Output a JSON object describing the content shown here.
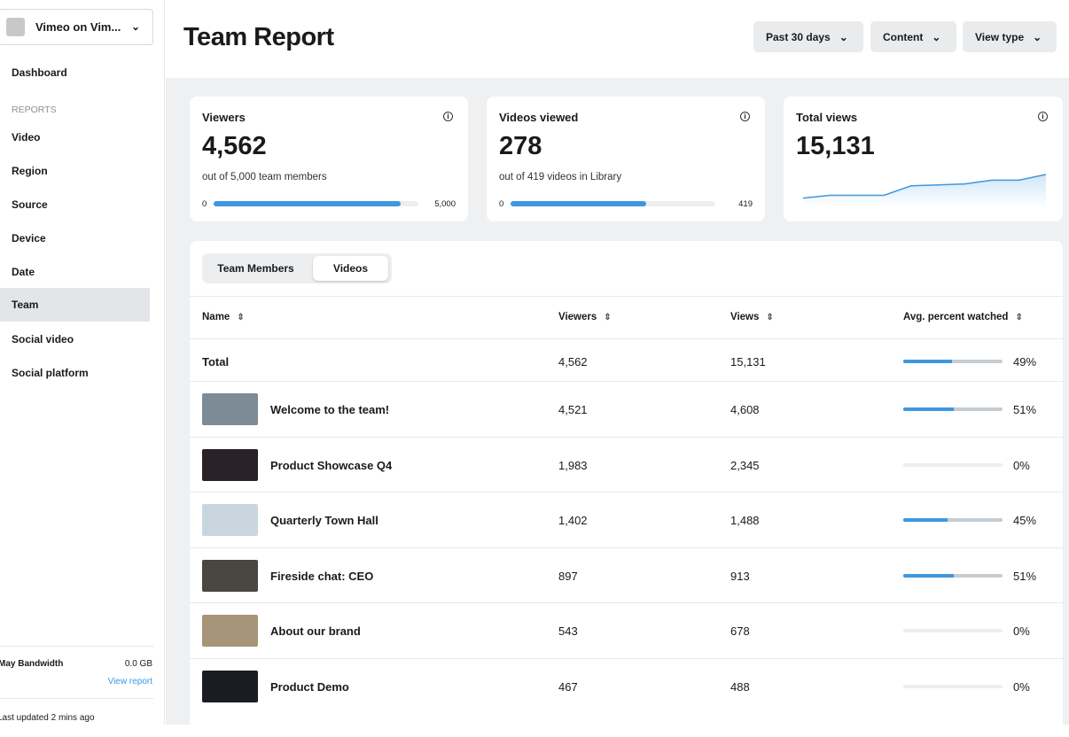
{
  "sidebar": {
    "workspace": "Vimeo on Vim...",
    "dashboard": "Dashboard",
    "section": "REPORTS",
    "items": [
      "Video",
      "Region",
      "Source",
      "Device",
      "Date",
      "Team",
      "Social video",
      "Social platform"
    ],
    "active": "Team",
    "bandwidth_label": "May Bandwidth",
    "bandwidth_value": "0.0 GB",
    "view_report": "View report",
    "last_updated": "Last updated 2 mins ago"
  },
  "header": {
    "title": "Team Report",
    "filters": [
      "Past 30 days",
      "Content",
      "View type"
    ]
  },
  "cards": {
    "viewers": {
      "title": "Viewers",
      "value": "4,562",
      "sub": "out of 5,000 team members",
      "min": "0",
      "max": "5,000",
      "progress": 0.912
    },
    "videos": {
      "title": "Videos viewed",
      "value": "278",
      "sub": "out of 419 videos in Library",
      "min": "0",
      "max": "419",
      "progress": 0.663
    },
    "views": {
      "title": "Total views",
      "value": "15,131",
      "trend": [
        5,
        8,
        8,
        8,
        18,
        19,
        20,
        24,
        24,
        30
      ]
    }
  },
  "table": {
    "tabs": [
      "Team Members",
      "Videos"
    ],
    "active_tab": "Videos",
    "headers": [
      "Name",
      "Viewers",
      "Views",
      "Avg. percent watched"
    ],
    "total": {
      "name": "Total",
      "viewers": "4,562",
      "views": "15,131",
      "pct": "49%",
      "pct_value": 49
    },
    "rows": [
      {
        "name": "Welcome to the team!",
        "viewers": "4,521",
        "views": "4,608",
        "pct": "51%",
        "pct_value": 51,
        "thumb": "#7d8b96"
      },
      {
        "name": "Product Showcase Q4",
        "viewers": "1,983",
        "views": "2,345",
        "pct": "0%",
        "pct_value": 0,
        "thumb": "#2a2226"
      },
      {
        "name": "Quarterly Town Hall",
        "viewers": "1,402",
        "views": "1,488",
        "pct": "45%",
        "pct_value": 45,
        "thumb": "#c9d6de"
      },
      {
        "name": "Fireside chat: CEO",
        "viewers": "897",
        "views": "913",
        "pct": "51%",
        "pct_value": 51,
        "thumb": "#4a4640"
      },
      {
        "name": "About our brand",
        "viewers": "543",
        "views": "678",
        "pct": "0%",
        "pct_value": 0,
        "thumb": "#a89478"
      },
      {
        "name": "Product Demo",
        "viewers": "467",
        "views": "488",
        "pct": "0%",
        "pct_value": 0,
        "thumb": "#1a1c24"
      }
    ]
  },
  "colors": {
    "accent": "#3f97e0",
    "link": "#3a9be0"
  }
}
